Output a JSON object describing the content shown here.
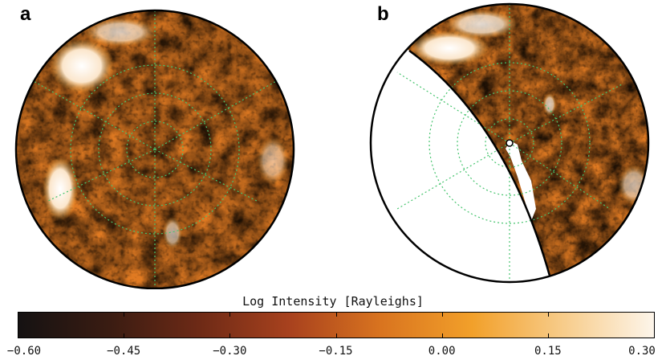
{
  "panels": [
    {
      "letter": "a"
    },
    {
      "letter": "b"
    }
  ],
  "colorbar": {
    "title": "Log Intensity [Rayleighs]",
    "min": -0.6,
    "max": 0.3,
    "ticks": [
      "−0.60",
      "−0.45",
      "−0.30",
      "−0.15",
      "0.00",
      "0.15",
      "0.30"
    ],
    "tick_values": [
      -0.6,
      -0.45,
      -0.3,
      -0.15,
      0.0,
      0.15,
      0.3
    ],
    "colors": [
      "#151212",
      "#3a1c12",
      "#6e2a16",
      "#a9421e",
      "#d9741f",
      "#f2a02a",
      "#f7cc8a",
      "#fdf5ea"
    ]
  },
  "grid_color": "#46c46e"
}
